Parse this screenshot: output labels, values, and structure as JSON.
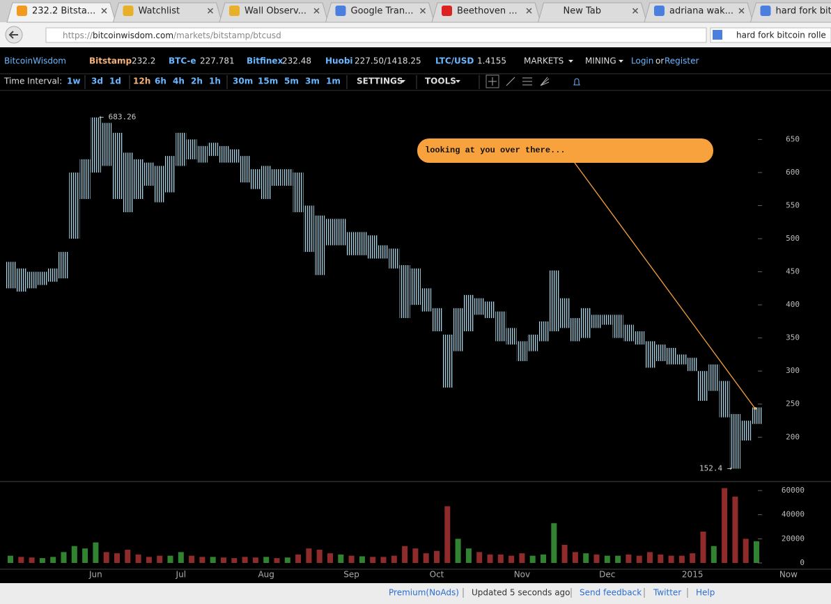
{
  "browser": {
    "tabs": [
      "232.2 Bitsta...",
      "Watchlist",
      "Wall Observ...",
      "Google Tran...",
      "Beethoven ...",
      "New Tab",
      "adriana wak...",
      "hard fork bit..."
    ],
    "url_prefix": "https://",
    "url_host": "bitcoinwisdom.com",
    "url_path": "/markets/bitstamp/btcusd",
    "search": "hard fork bitcoin rolle"
  },
  "ticker": {
    "brand": "BitcoinWisdom",
    "items": [
      {
        "exchange": "Bitstamp",
        "price": "232.2"
      },
      {
        "exchange": "BTC-e",
        "price": "227.781"
      },
      {
        "exchange": "Bitfinex",
        "price": "232.48"
      },
      {
        "exchange": "Huobi",
        "price": "227.50/1418.25"
      },
      {
        "exchange": "LTC/USD",
        "price": "1.4155"
      }
    ],
    "menus": [
      "MARKETS",
      "MINING"
    ],
    "login": "Login",
    "or": "or",
    "register": "Register"
  },
  "toolbar": {
    "label": "Time Interval:",
    "intervals": [
      "1w",
      "3d",
      "1d",
      "12h",
      "6h",
      "4h",
      "2h",
      "1h",
      "30m",
      "15m",
      "5m",
      "3m",
      "1m"
    ],
    "selected": "12h",
    "settings": "SETTINGS",
    "tools": "TOOLS"
  },
  "chart_data": [
    {
      "type": "candlestick",
      "color": "#a8d4e6",
      "categories": [
        null,
        null,
        null,
        null,
        null,
        null,
        null,
        null,
        "Jun",
        null,
        null,
        null,
        null,
        null,
        null,
        null,
        "Jul",
        null,
        null,
        null,
        null,
        null,
        null,
        null,
        "Aug",
        null,
        null,
        null,
        null,
        null,
        null,
        null,
        "Sep",
        null,
        null,
        null,
        null,
        null,
        null,
        null,
        "Oct",
        null,
        null,
        null,
        null,
        null,
        null,
        null,
        "Nov",
        null,
        null,
        null,
        null,
        null,
        null,
        null,
        "Dec",
        null,
        null,
        null,
        null,
        null,
        null,
        null,
        "2015",
        null,
        null,
        null,
        null,
        null,
        null,
        null,
        null,
        "Now"
      ],
      "high": [
        465,
        455,
        450,
        450,
        455,
        480,
        600,
        620,
        683.26,
        675,
        660,
        630,
        620,
        615,
        610,
        625,
        660,
        650,
        640,
        645,
        640,
        635,
        625,
        605,
        610,
        605,
        605,
        600,
        550,
        535,
        530,
        530,
        510,
        510,
        505,
        490,
        485,
        460,
        455,
        425,
        395,
        355,
        395,
        415,
        410,
        405,
        390,
        365,
        345,
        355,
        375,
        452,
        410,
        380,
        395,
        385,
        385,
        385,
        370,
        360,
        345,
        340,
        335,
        325,
        320,
        300,
        310,
        285,
        235,
        225,
        245,
        null,
        null,
        null
      ],
      "low": [
        425,
        420,
        425,
        430,
        435,
        440,
        500,
        560,
        600,
        610,
        560,
        540,
        560,
        580,
        555,
        570,
        610,
        620,
        615,
        625,
        615,
        615,
        585,
        575,
        560,
        580,
        580,
        540,
        480,
        445,
        490,
        490,
        475,
        475,
        470,
        470,
        455,
        380,
        400,
        390,
        360,
        275,
        330,
        360,
        385,
        380,
        345,
        340,
        315,
        330,
        345,
        360,
        365,
        345,
        350,
        365,
        370,
        350,
        345,
        340,
        305,
        315,
        310,
        310,
        300,
        255,
        270,
        230,
        152.4,
        195,
        220,
        null,
        null,
        null
      ],
      "ylim": [
        133,
        724
      ],
      "yticks": [
        200,
        250,
        300,
        350,
        400,
        450,
        500,
        550,
        600,
        650
      ],
      "max_label": "← 683.26",
      "min_label": "152.4 →"
    },
    {
      "type": "bar",
      "up_color": "#3a9a3a",
      "down_color": "#a83232",
      "values": [
        6000,
        5000,
        4500,
        4000,
        5000,
        9000,
        14000,
        12000,
        17000,
        9000,
        8000,
        11000,
        7000,
        5000,
        6000,
        6000,
        9000,
        6000,
        5000,
        5000,
        4500,
        4000,
        5000,
        4500,
        5000,
        4000,
        4500,
        7000,
        12000,
        11000,
        8000,
        7000,
        6000,
        5500,
        5000,
        5000,
        6000,
        14000,
        12000,
        8000,
        10000,
        47000,
        20000,
        12000,
        9000,
        7000,
        7000,
        6000,
        8000,
        6000,
        7000,
        33000,
        15000,
        9000,
        8000,
        7000,
        6000,
        6000,
        7000,
        6000,
        9000,
        7000,
        6000,
        6000,
        8000,
        26000,
        14000,
        62000,
        55000,
        20000,
        18000,
        null,
        null,
        null
      ],
      "ylim": [
        0,
        64600
      ],
      "yticks": [
        0,
        20000,
        40000,
        60000
      ]
    }
  ],
  "callout": "looking at you over there...",
  "footer": {
    "links": [
      "Premium(NoAds)",
      "Send feedback",
      "Twitter",
      "Help"
    ],
    "status": "Updated 5 seconds ago"
  }
}
